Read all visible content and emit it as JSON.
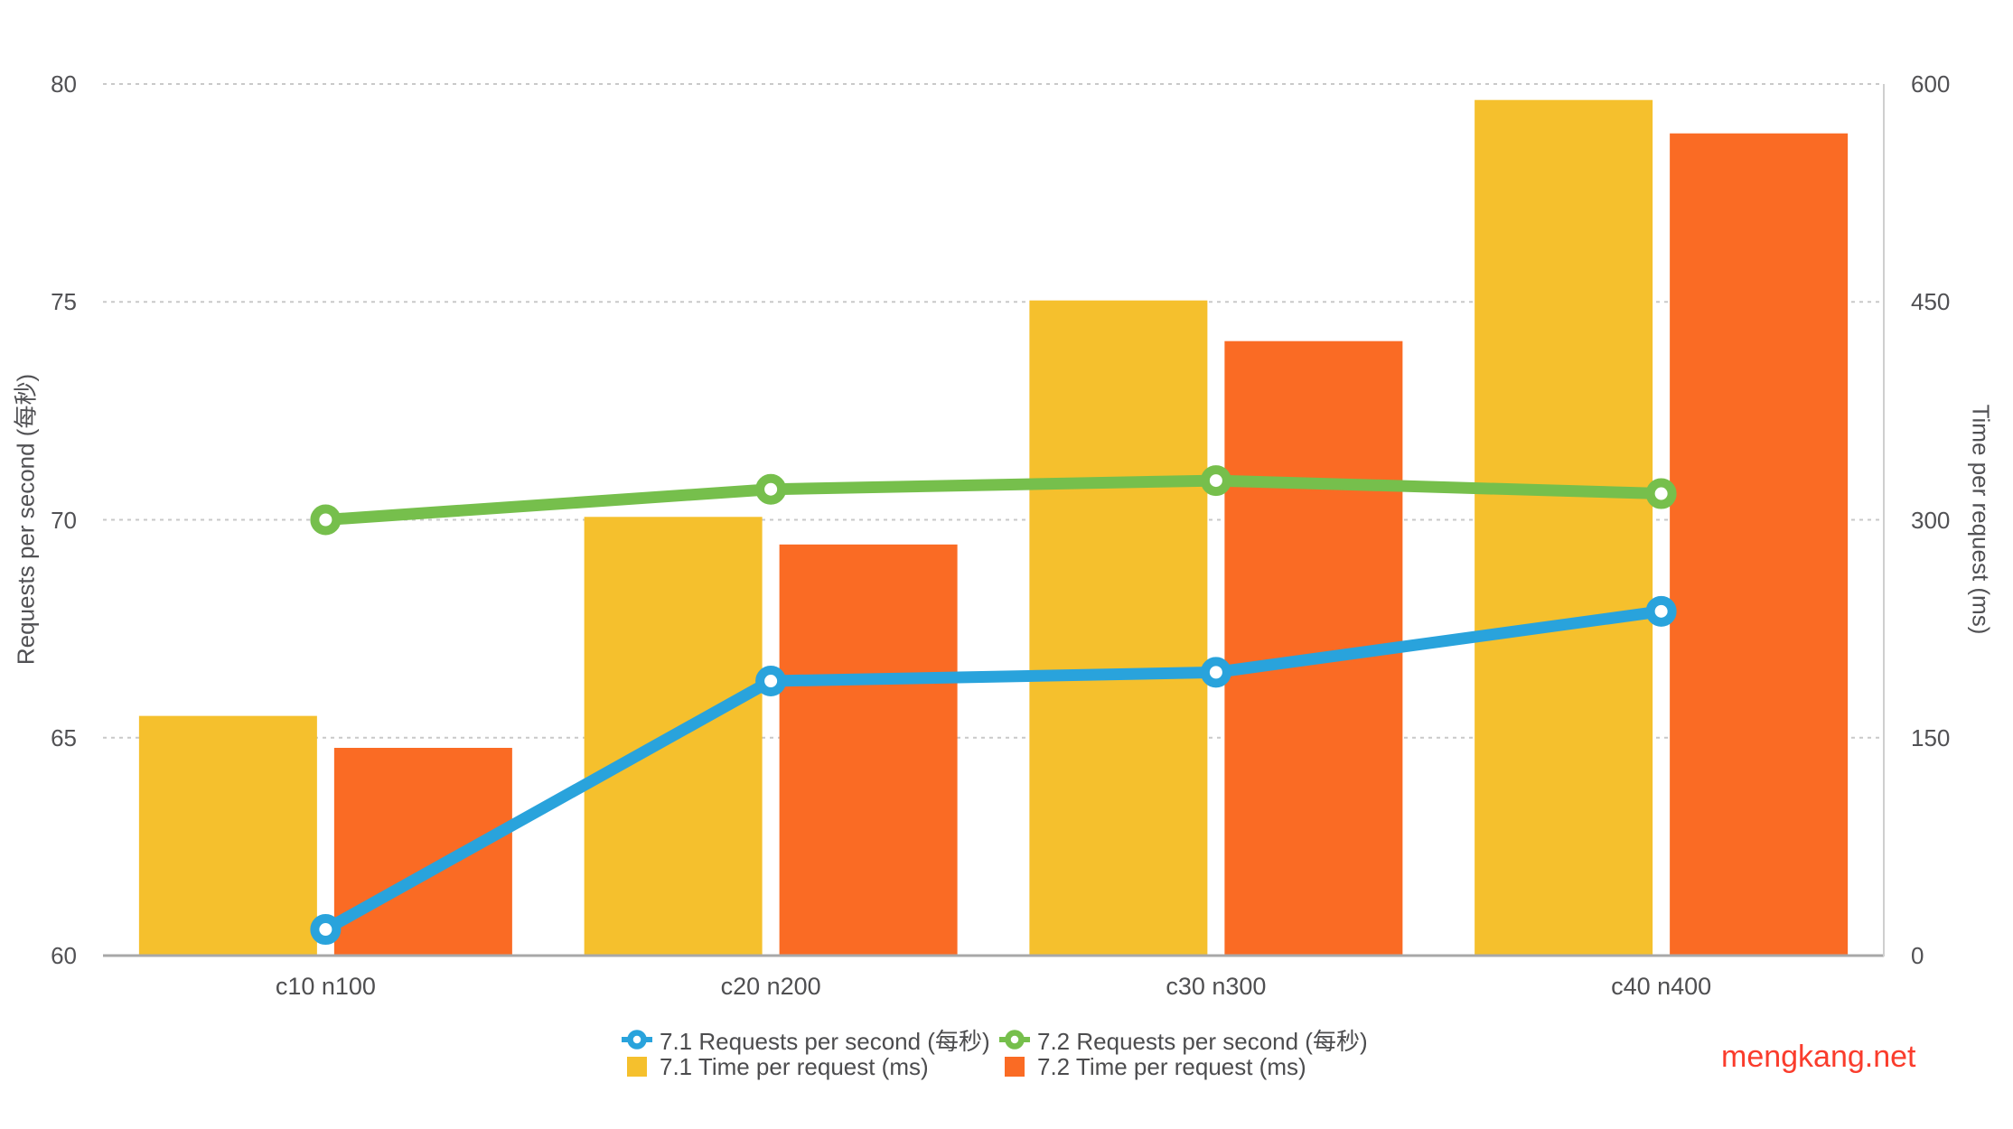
{
  "chart_data": {
    "type": "combo-bar-line",
    "categories": [
      "c10 n100",
      "c20 n200",
      "c30 n300",
      "c40 n400"
    ],
    "series": [
      {
        "name": "7.1 Requests per second (每秒)",
        "type": "line",
        "axis": "left",
        "color": "#29a3dc",
        "values": [
          60.6,
          66.3,
          66.5,
          67.9
        ]
      },
      {
        "name": "7.2 Requests per second (每秒)",
        "type": "line",
        "axis": "left",
        "color": "#76bf4c",
        "values": [
          70.0,
          70.7,
          70.9,
          70.6
        ]
      },
      {
        "name": "7.1 Time per request (ms)",
        "type": "bar",
        "axis": "right",
        "color": "#f5c02d",
        "values": [
          165,
          302,
          451,
          589
        ]
      },
      {
        "name": "7.2 Time per request (ms)",
        "type": "bar",
        "axis": "right",
        "color": "#fa6b24",
        "values": [
          143,
          283,
          423,
          566
        ]
      }
    ],
    "left_axis": {
      "label": "Requests per second (每秒)",
      "min": 60,
      "max": 80,
      "ticks": [
        80,
        75,
        70,
        65,
        60
      ]
    },
    "right_axis": {
      "label": "Time per request (ms)",
      "min": 0,
      "max": 600,
      "ticks": [
        600,
        450,
        300,
        150,
        0
      ]
    },
    "grid": "horizontal-dashed",
    "legend_position": "bottom-center"
  },
  "watermark": {
    "text": "mengkang.net",
    "color": "#fa3c2c"
  },
  "style_colors": {
    "gridline": "#c9c9c9",
    "baseline": "#a8a8a8",
    "right_border": "#cfcfcf",
    "tick_text": "#515154"
  }
}
